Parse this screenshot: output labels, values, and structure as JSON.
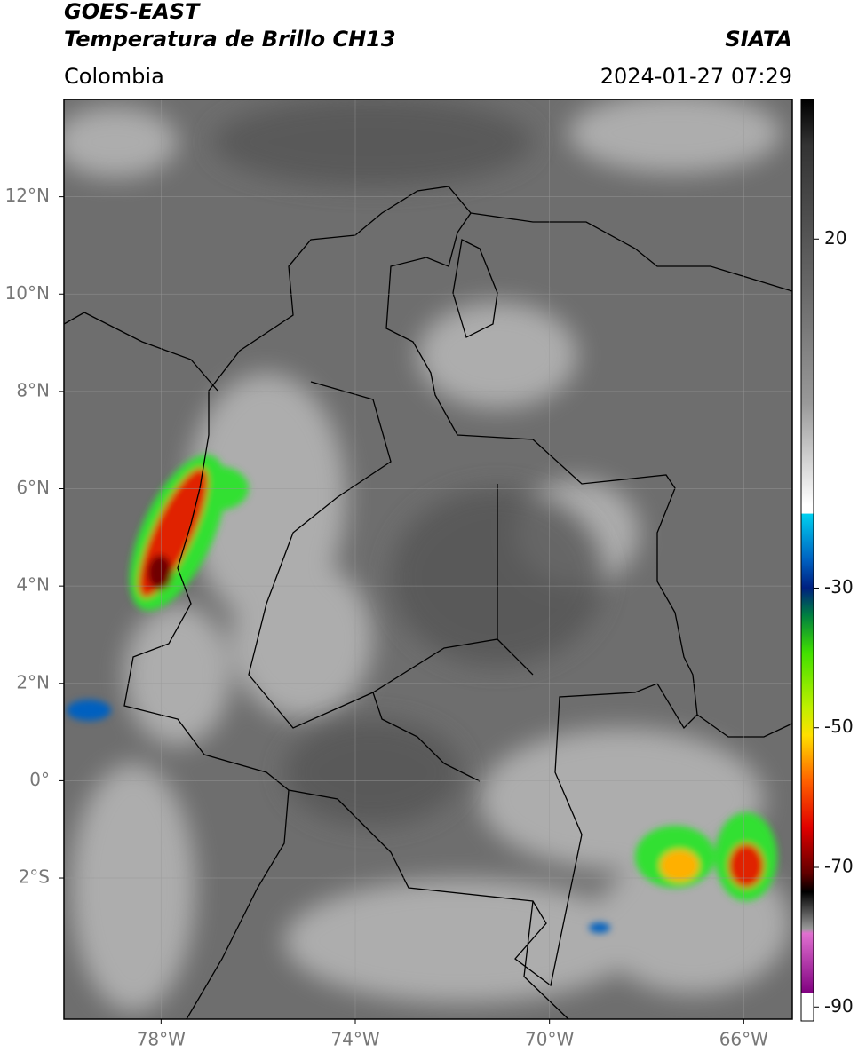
{
  "header": {
    "satellite": "GOES-EAST",
    "product": "Temperatura de Brillo CH13",
    "source": "SIATA",
    "region": "Colombia",
    "datetime": "2024-01-27 07:29"
  },
  "map": {
    "xlim": [
      -80,
      -65
    ],
    "ylim": [
      -4.9,
      14
    ],
    "xticks": [
      {
        "value": -78,
        "label": "78°W"
      },
      {
        "value": -74,
        "label": "74°W"
      },
      {
        "value": -70,
        "label": "70°W"
      },
      {
        "value": -66,
        "label": "66°W"
      }
    ],
    "yticks": [
      {
        "value": 12,
        "label": "12°N"
      },
      {
        "value": 10,
        "label": "10°N"
      },
      {
        "value": 8,
        "label": "8°N"
      },
      {
        "value": 6,
        "label": "6°N"
      },
      {
        "value": 4,
        "label": "4°N"
      },
      {
        "value": 2,
        "label": "2°N"
      },
      {
        "value": 0,
        "label": "0°"
      },
      {
        "value": -2,
        "label": "2°S"
      }
    ]
  },
  "colorbar": {
    "ylim": [
      -92,
      40
    ],
    "yticks": [
      20,
      -30,
      -50,
      -70,
      -90
    ]
  }
}
